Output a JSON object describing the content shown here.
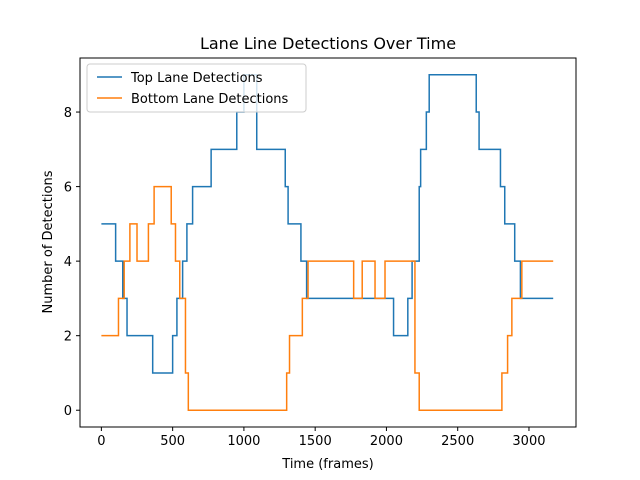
{
  "chart_data": {
    "type": "line",
    "title": "Lane Line Detections Over Time",
    "xlabel": "Time (frames)",
    "ylabel": "Number of Detections",
    "xlim": [
      -150,
      3330
    ],
    "ylim": [
      -0.45,
      9.45
    ],
    "xticks": [
      0,
      500,
      1000,
      1500,
      2000,
      2500,
      3000
    ],
    "yticks": [
      0,
      2,
      4,
      6,
      8
    ],
    "grid": false,
    "legend": "top-left",
    "series": [
      {
        "name": "Top Lane Detections",
        "color": "#1f77b4",
        "step": "post",
        "x": [
          0,
          100,
          150,
          180,
          360,
          500,
          530,
          570,
          600,
          640,
          770,
          950,
          1000,
          1090,
          1290,
          1310,
          1400,
          1440,
          2050,
          2060,
          2150,
          2180,
          2230,
          2240,
          2280,
          2300,
          2630,
          2650,
          2800,
          2830,
          2900,
          2940,
          3170
        ],
        "y": [
          5,
          4,
          3,
          2,
          1,
          2,
          3,
          4,
          5,
          6,
          7,
          8,
          9,
          7,
          6,
          5,
          4,
          3,
          2,
          2,
          3,
          4,
          6,
          7,
          8,
          9,
          8,
          7,
          6,
          5,
          4,
          3,
          3
        ]
      },
      {
        "name": "Bottom Lane Detections",
        "color": "#ff7f0e",
        "step": "post",
        "x": [
          0,
          120,
          160,
          200,
          250,
          330,
          370,
          490,
          520,
          550,
          590,
          610,
          1300,
          1320,
          1410,
          1450,
          1770,
          1830,
          1920,
          1990,
          2200,
          2230,
          2810,
          2850,
          2880,
          2920,
          2950,
          3170
        ],
        "y": [
          2,
          3,
          4,
          5,
          4,
          5,
          6,
          5,
          4,
          3,
          1,
          0,
          1,
          2,
          3,
          4,
          3,
          4,
          3,
          4,
          1,
          0,
          1,
          2,
          3,
          3,
          4,
          4
        ]
      }
    ]
  }
}
